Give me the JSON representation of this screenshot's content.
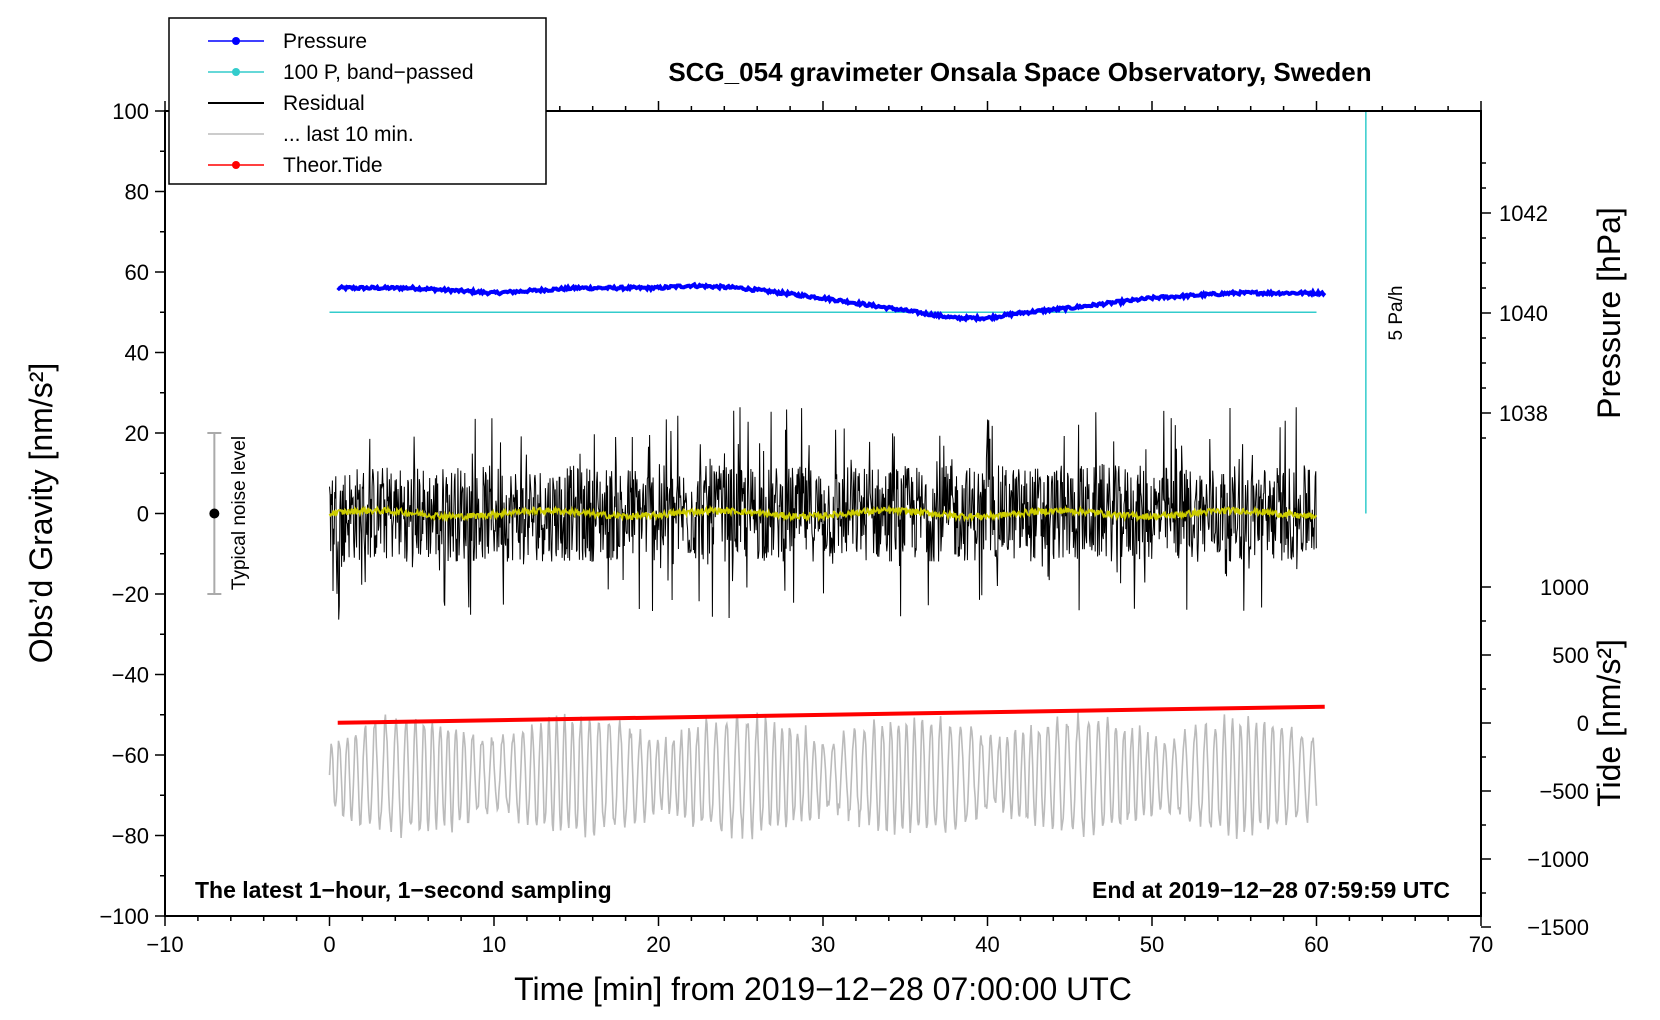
{
  "chart_data": {
    "type": "line",
    "title": "SCG_054 gravimeter Onsala Space Observatory, Sweden",
    "xlabel": "Time [min] from 2019−12−28 07:00:00 UTC",
    "ylabel": "Obs’d Gravity [nm/s²]",
    "xlim": [
      -10,
      70
    ],
    "ylim": [
      -100,
      100
    ],
    "x_ticks": [
      "−10",
      "0",
      "10",
      "20",
      "30",
      "40",
      "50",
      "60",
      "70"
    ],
    "y_ticks": [
      "−100",
      "−80",
      "−60",
      "−40",
      "−20",
      "0",
      "20",
      "40",
      "60",
      "80",
      "100"
    ],
    "right_pressure_axis": {
      "label": "Pressure [hPa]",
      "ticks": [
        "1038",
        "1040",
        "1042"
      ]
    },
    "right_tide_axis": {
      "label": "Tide [nm/s²]",
      "ticks": [
        "−1500",
        "−1000",
        "−500",
        "0",
        "500",
        "1000"
      ]
    },
    "legend": [
      {
        "label": "Pressure",
        "color": "#0000ff",
        "marker": true
      },
      {
        "label": "100 P, band−passed",
        "color": "#33cccc",
        "marker": true
      },
      {
        "label": "Residual",
        "color": "#000000",
        "marker": false
      },
      {
        "label": "... last 10 min.",
        "color": "#bbbbbb",
        "marker": false
      },
      {
        "label": "Theor.Tide",
        "color": "#ff0000",
        "marker": true
      }
    ],
    "series": [
      {
        "name": "Pressure",
        "color": "#0000ff",
        "unit": "hPa",
        "x": [
          0.5,
          5,
          10,
          15,
          20,
          22,
          25,
          30,
          35,
          37,
          38,
          40,
          42,
          45,
          50,
          55,
          60.5
        ],
        "values": [
          1040.5,
          1040.5,
          1040.4,
          1040.5,
          1040.5,
          1040.55,
          1040.5,
          1040.3,
          1040.05,
          1039.95,
          1039.9,
          1039.9,
          1040.0,
          1040.1,
          1040.3,
          1040.4,
          1040.4
        ]
      },
      {
        "name": "100 P, band-passed",
        "color": "#33cccc",
        "x": [
          0,
          60
        ],
        "values": [
          50,
          50
        ]
      },
      {
        "name": "Residual",
        "color": "#000000",
        "x_range": [
          0,
          60
        ],
        "amplitude_range": [
          -36,
          36
        ]
      },
      {
        "name": "Residual (smoothed)",
        "color": "#cccc00",
        "x_range": [
          0,
          60
        ],
        "approx_value": 0
      },
      {
        "name": "... last 10 min.",
        "color": "#bbbbbb",
        "x_range": [
          0,
          60
        ],
        "center": -65,
        "amplitude_range": [
          -88,
          -42
        ]
      },
      {
        "name": "Theor.Tide",
        "color": "#ff0000",
        "x": [
          0.5,
          60.5
        ],
        "values": [
          -52,
          -48
        ]
      }
    ],
    "pressure_scale_bar": {
      "label": "5 Pa/h",
      "x": 63,
      "y_range": [
        0,
        100
      ]
    },
    "noise_bar": {
      "label": "Typical noise level",
      "x": -7,
      "y_range": [
        -20,
        20
      ],
      "center": 0
    },
    "footer_left": "The latest 1−hour, 1−second sampling",
    "footer_right": "End at 2019−12−28 07:59:59 UTC"
  }
}
